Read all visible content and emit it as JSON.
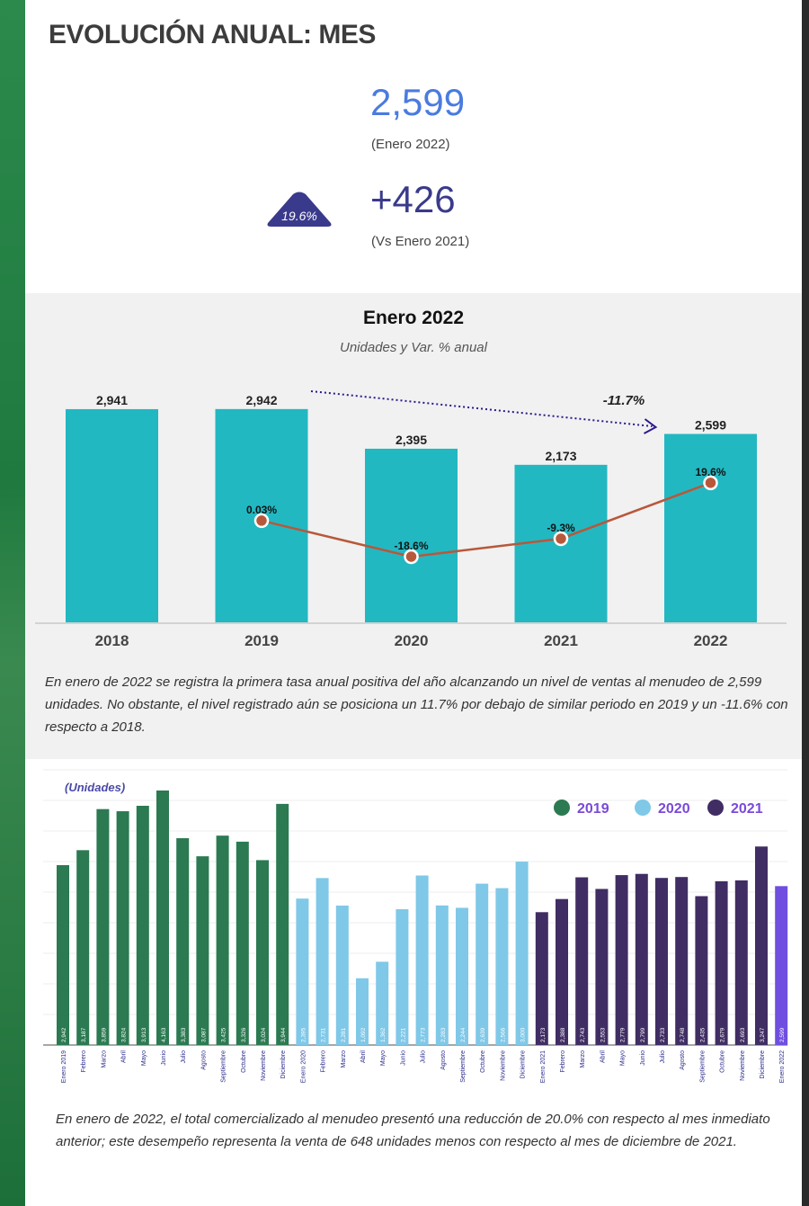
{
  "header": {
    "title": "EVOLUCIÓN ANUAL: MES",
    "kpi_value": "2,599",
    "kpi_period": "(Enero 2022)",
    "badge_pct": "19.6%",
    "kpi_delta": "+426",
    "kpi_compare": "(Vs Enero 2021)"
  },
  "colors": {
    "accent_blue": "#4a7be0",
    "badge": "#3a3a8c",
    "bar_teal": "#22b8c2",
    "line": "#b8583a",
    "c2019": "#2b7a52",
    "c2020": "#7fc8e8",
    "c2021": "#3f2d63",
    "c2022": "#6f4ee0"
  },
  "chart_data": [
    {
      "type": "bar",
      "title": "Enero 2022",
      "subtitle": "Unidades y Var. % anual",
      "categories": [
        "2018",
        "2019",
        "2020",
        "2021",
        "2022"
      ],
      "series": [
        {
          "values": [
            2941,
            2942,
            2395,
            2173,
            2599
          ],
          "labels": [
            "2,941",
            "2,942",
            "2,395",
            "2,173",
            "2,599"
          ]
        },
        {
          "type": "line",
          "x": [
            "2019",
            "2020",
            "2021",
            "2022"
          ],
          "values": [
            0.03,
            -18.6,
            -9.3,
            19.6
          ],
          "labels": [
            "0.03%",
            "-18.6%",
            "-9.3%",
            "19.6%"
          ]
        }
      ],
      "annotation": "-11.7%",
      "ylim": [
        0,
        3300
      ]
    },
    {
      "type": "bar",
      "ylabel": "(Unidades)",
      "legend": [
        "2019",
        "2020",
        "2021"
      ],
      "legend_position": "top-right",
      "categories": [
        "Enero 2019",
        "Febrero",
        "Marzo",
        "Abril",
        "Mayo",
        "Junio",
        "Julio",
        "Agosto",
        "Septiembre",
        "Octubre",
        "Noviembre",
        "Diciembre",
        "Enero 2020",
        "Febrero",
        "Marzo",
        "Abril",
        "Mayo",
        "Junio",
        "Julio",
        "Agosto",
        "Septiembre",
        "Octubre",
        "Noviembre",
        "Diciembre",
        "Enero 2021",
        "Febrero",
        "Marzo",
        "Abril",
        "Mayo",
        "Junio",
        "Julio",
        "Agosto",
        "Septiembre",
        "Octubre",
        "Noviembre",
        "Diciembre",
        "Enero 2022"
      ],
      "values": [
        2942,
        3187,
        3859,
        3824,
        3913,
        4163,
        3383,
        3087,
        3425,
        3326,
        3024,
        3944,
        2395,
        2731,
        2281,
        1092,
        1362,
        2221,
        2773,
        2283,
        2244,
        2639,
        2566,
        3000,
        2173,
        2388,
        2743,
        2553,
        2779,
        2799,
        2733,
        2748,
        2435,
        2679,
        2693,
        3247,
        2599
      ],
      "value_labels": [
        "2,942",
        "3,187",
        "3,859",
        "3,824",
        "3,913",
        "4,163",
        "3,383",
        "3,087",
        "3,425",
        "3,326",
        "3,024",
        "3,944",
        "2,395",
        "2,731",
        "2,281",
        "1,092",
        "1,362",
        "2,221",
        "2,773",
        "2,283",
        "2,244",
        "2,639",
        "2,566",
        "3,000",
        "2,173",
        "2,388",
        "2,743",
        "2,553",
        "2,779",
        "2,799",
        "2,733",
        "2,748",
        "2,435",
        "2,679",
        "2,693",
        "3,247",
        "2,599"
      ],
      "year_group": [
        "2019",
        "2019",
        "2019",
        "2019",
        "2019",
        "2019",
        "2019",
        "2019",
        "2019",
        "2019",
        "2019",
        "2019",
        "2020",
        "2020",
        "2020",
        "2020",
        "2020",
        "2020",
        "2020",
        "2020",
        "2020",
        "2020",
        "2020",
        "2020",
        "2021",
        "2021",
        "2021",
        "2021",
        "2021",
        "2021",
        "2021",
        "2021",
        "2021",
        "2021",
        "2021",
        "2021",
        "2022"
      ]
    }
  ],
  "text": {
    "para1": "En enero de 2022 se registra la primera tasa anual positiva del año alcanzando un nivel de ventas al menudeo de 2,599 unidades. No obstante, el nivel registrado  aún se posiciona un 11.7% por debajo de similar periodo en 2019 y un -11.6% con respecto a 2018.",
    "para2": "En enero de 2022, el total comercializado al menudeo presentó una reducción de 20.0% con respecto al mes inmediato anterior; este desempeño representa la venta de 648  unidades menos con respecto al mes de diciembre de 2021."
  }
}
